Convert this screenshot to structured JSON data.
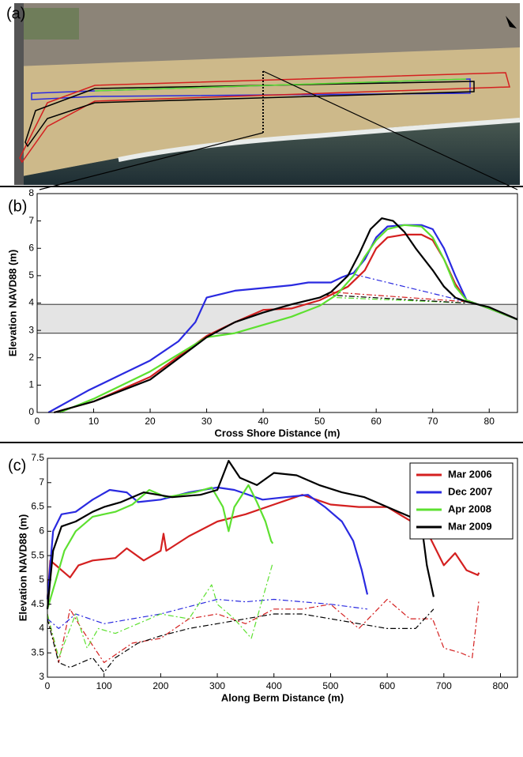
{
  "panel_a": {
    "label": "(a)"
  },
  "chart_data": [
    {
      "type": "line",
      "panel_label": "(b)",
      "y_label": "Elevation NAVD88 (m)",
      "x_label": "Cross Shore Distance (m)",
      "xlim": [
        0,
        85
      ],
      "xticks": [
        0,
        10,
        20,
        30,
        40,
        50,
        60,
        70,
        80
      ],
      "ylim": [
        0,
        8
      ],
      "yticks": [
        0,
        1,
        2,
        3,
        4,
        5,
        6,
        7,
        8
      ],
      "shaded_band": [
        2.9,
        3.95
      ],
      "band_color": "#e4e4e4",
      "series": [
        {
          "color": "#d42020",
          "x": [
            3,
            10,
            20,
            30,
            35,
            40,
            45,
            50,
            55,
            58,
            60,
            62,
            65,
            68,
            70,
            72,
            74,
            76,
            80,
            85
          ],
          "values": [
            0,
            0.4,
            1.3,
            2.8,
            3.3,
            3.75,
            3.8,
            4.1,
            4.6,
            5.2,
            6.0,
            6.4,
            6.5,
            6.5,
            6.3,
            5.6,
            4.7,
            4.1,
            3.8,
            3.4
          ],
          "dash_x": [
            52,
            76
          ],
          "dash_values": [
            4.4,
            4.05
          ]
        },
        {
          "color": "#2a2ae0",
          "x": [
            2,
            9,
            15,
            20,
            25,
            28,
            30,
            35,
            40,
            45,
            48,
            52,
            54,
            56,
            58,
            60,
            62,
            65,
            68,
            70,
            72,
            74,
            76,
            80,
            85
          ],
          "values": [
            0,
            0.8,
            1.4,
            1.9,
            2.6,
            3.3,
            4.2,
            4.45,
            4.55,
            4.65,
            4.75,
            4.75,
            4.95,
            5.1,
            5.6,
            6.4,
            6.8,
            6.85,
            6.85,
            6.7,
            6.0,
            5.0,
            4.1,
            3.8,
            3.4
          ],
          "dash_x": [
            56,
            76
          ],
          "dash_values": [
            5.05,
            4.05
          ]
        },
        {
          "color": "#5de030",
          "x": [
            4,
            10,
            20,
            30,
            35,
            40,
            45,
            50,
            53,
            56,
            58,
            60,
            62,
            65,
            68,
            70,
            72,
            74,
            76,
            80,
            85
          ],
          "values": [
            0,
            0.5,
            1.5,
            2.75,
            2.9,
            3.2,
            3.5,
            3.9,
            4.3,
            5.0,
            5.7,
            6.3,
            6.7,
            6.85,
            6.8,
            6.4,
            5.6,
            4.6,
            4.1,
            3.8,
            3.4
          ],
          "dash_x": [
            53,
            76
          ],
          "dash_values": [
            4.2,
            4.0
          ]
        },
        {
          "color": "#000000",
          "x": [
            3,
            10,
            20,
            30,
            35,
            40,
            45,
            50,
            52,
            55,
            57,
            59,
            61,
            63,
            65,
            67,
            70,
            72,
            74,
            76,
            80,
            85
          ],
          "values": [
            0,
            0.4,
            1.2,
            2.75,
            3.3,
            3.65,
            3.95,
            4.2,
            4.4,
            5.0,
            5.8,
            6.7,
            7.1,
            7.0,
            6.6,
            6.0,
            5.2,
            4.6,
            4.2,
            4.05,
            3.85,
            3.4
          ],
          "dash_x": [
            51,
            76
          ],
          "dash_values": [
            4.3,
            4.0
          ]
        }
      ]
    },
    {
      "type": "line",
      "panel_label": "(c)",
      "y_label": "Elevation NAVD88 (m)",
      "x_label": "Along Berm Distance (m)",
      "xlim": [
        0,
        830
      ],
      "xticks": [
        0,
        100,
        200,
        300,
        400,
        500,
        600,
        700,
        800
      ],
      "ylim": [
        3,
        7.5
      ],
      "yticks": [
        3,
        3.5,
        4,
        4.5,
        5,
        5.5,
        6,
        6.5,
        7,
        7.5
      ],
      "legend": "upper right",
      "series": [
        {
          "name": "Mar 2006",
          "color": "#d42020",
          "x": [
            0,
            5,
            15,
            25,
            40,
            55,
            80,
            120,
            140,
            170,
            200,
            205,
            210,
            250,
            300,
            350,
            400,
            450,
            500,
            550,
            600,
            650,
            670,
            700,
            720,
            740,
            760,
            762
          ],
          "values": [
            4.6,
            5.4,
            5.3,
            5.2,
            5.05,
            5.3,
            5.4,
            5.45,
            5.65,
            5.4,
            5.6,
            5.95,
            5.6,
            5.9,
            6.2,
            6.35,
            6.55,
            6.75,
            6.55,
            6.5,
            6.5,
            6.15,
            6.0,
            5.3,
            5.55,
            5.2,
            5.1,
            5.15
          ],
          "dash_x": [
            0,
            20,
            40,
            60,
            100,
            150,
            200,
            250,
            300,
            350,
            400,
            450,
            500,
            550,
            600,
            640,
            680,
            700,
            730,
            750,
            762
          ],
          "dash_values": [
            4.3,
            3.3,
            4.4,
            4.0,
            3.3,
            3.7,
            3.8,
            4.2,
            4.3,
            4.1,
            4.4,
            4.4,
            4.5,
            4.0,
            4.6,
            4.2,
            4.2,
            3.6,
            3.5,
            3.4,
            4.6
          ]
        },
        {
          "name": "Dec 2007",
          "color": "#2a2ae0",
          "x": [
            0,
            10,
            25,
            50,
            80,
            110,
            140,
            160,
            200,
            250,
            300,
            330,
            380,
            420,
            460,
            490,
            520,
            540,
            555,
            565
          ],
          "values": [
            4.6,
            6.0,
            6.35,
            6.4,
            6.65,
            6.85,
            6.8,
            6.6,
            6.65,
            6.8,
            6.9,
            6.85,
            6.65,
            6.7,
            6.75,
            6.5,
            6.2,
            5.8,
            5.2,
            4.7
          ],
          "dash_x": [
            0,
            20,
            50,
            100,
            150,
            200,
            250,
            300,
            350,
            400,
            450,
            500,
            565
          ],
          "dash_values": [
            4.2,
            4.0,
            4.3,
            4.1,
            4.2,
            4.3,
            4.45,
            4.6,
            4.55,
            4.6,
            4.55,
            4.5,
            4.4
          ]
        },
        {
          "name": "Apr 2008",
          "color": "#5de030",
          "x": [
            0,
            15,
            30,
            50,
            80,
            120,
            150,
            180,
            210,
            260,
            290,
            310,
            320,
            330,
            355,
            370,
            385,
            395,
            398
          ],
          "values": [
            4.4,
            5.0,
            5.6,
            6.0,
            6.3,
            6.4,
            6.55,
            6.85,
            6.7,
            6.8,
            6.9,
            6.5,
            6.0,
            6.5,
            6.95,
            6.6,
            6.2,
            5.8,
            5.75
          ],
          "dash_x": [
            0,
            20,
            50,
            70,
            90,
            120,
            160,
            200,
            250,
            290,
            300,
            330,
            360,
            398
          ],
          "dash_values": [
            4.3,
            3.4,
            4.3,
            3.6,
            4.0,
            3.9,
            4.1,
            4.3,
            4.2,
            4.9,
            4.5,
            4.2,
            3.8,
            5.35
          ]
        },
        {
          "name": "Mar 2009",
          "color": "#000000",
          "x": [
            0,
            10,
            25,
            50,
            80,
            100,
            130,
            170,
            220,
            270,
            300,
            320,
            340,
            370,
            400,
            440,
            480,
            520,
            560,
            620,
            660,
            670,
            682
          ],
          "values": [
            4.4,
            5.6,
            6.1,
            6.2,
            6.4,
            6.5,
            6.6,
            6.8,
            6.7,
            6.75,
            6.85,
            7.45,
            7.1,
            6.95,
            7.2,
            7.15,
            6.95,
            6.8,
            6.7,
            6.4,
            6.2,
            5.3,
            4.65
          ],
          "dash_x": [
            0,
            20,
            40,
            80,
            100,
            120,
            160,
            200,
            250,
            300,
            350,
            400,
            450,
            500,
            550,
            600,
            650,
            682
          ],
          "dash_values": [
            4.2,
            3.3,
            3.2,
            3.4,
            3.1,
            3.4,
            3.7,
            3.85,
            4.0,
            4.1,
            4.2,
            4.3,
            4.3,
            4.2,
            4.1,
            4.0,
            4.0,
            4.4
          ]
        }
      ]
    }
  ]
}
